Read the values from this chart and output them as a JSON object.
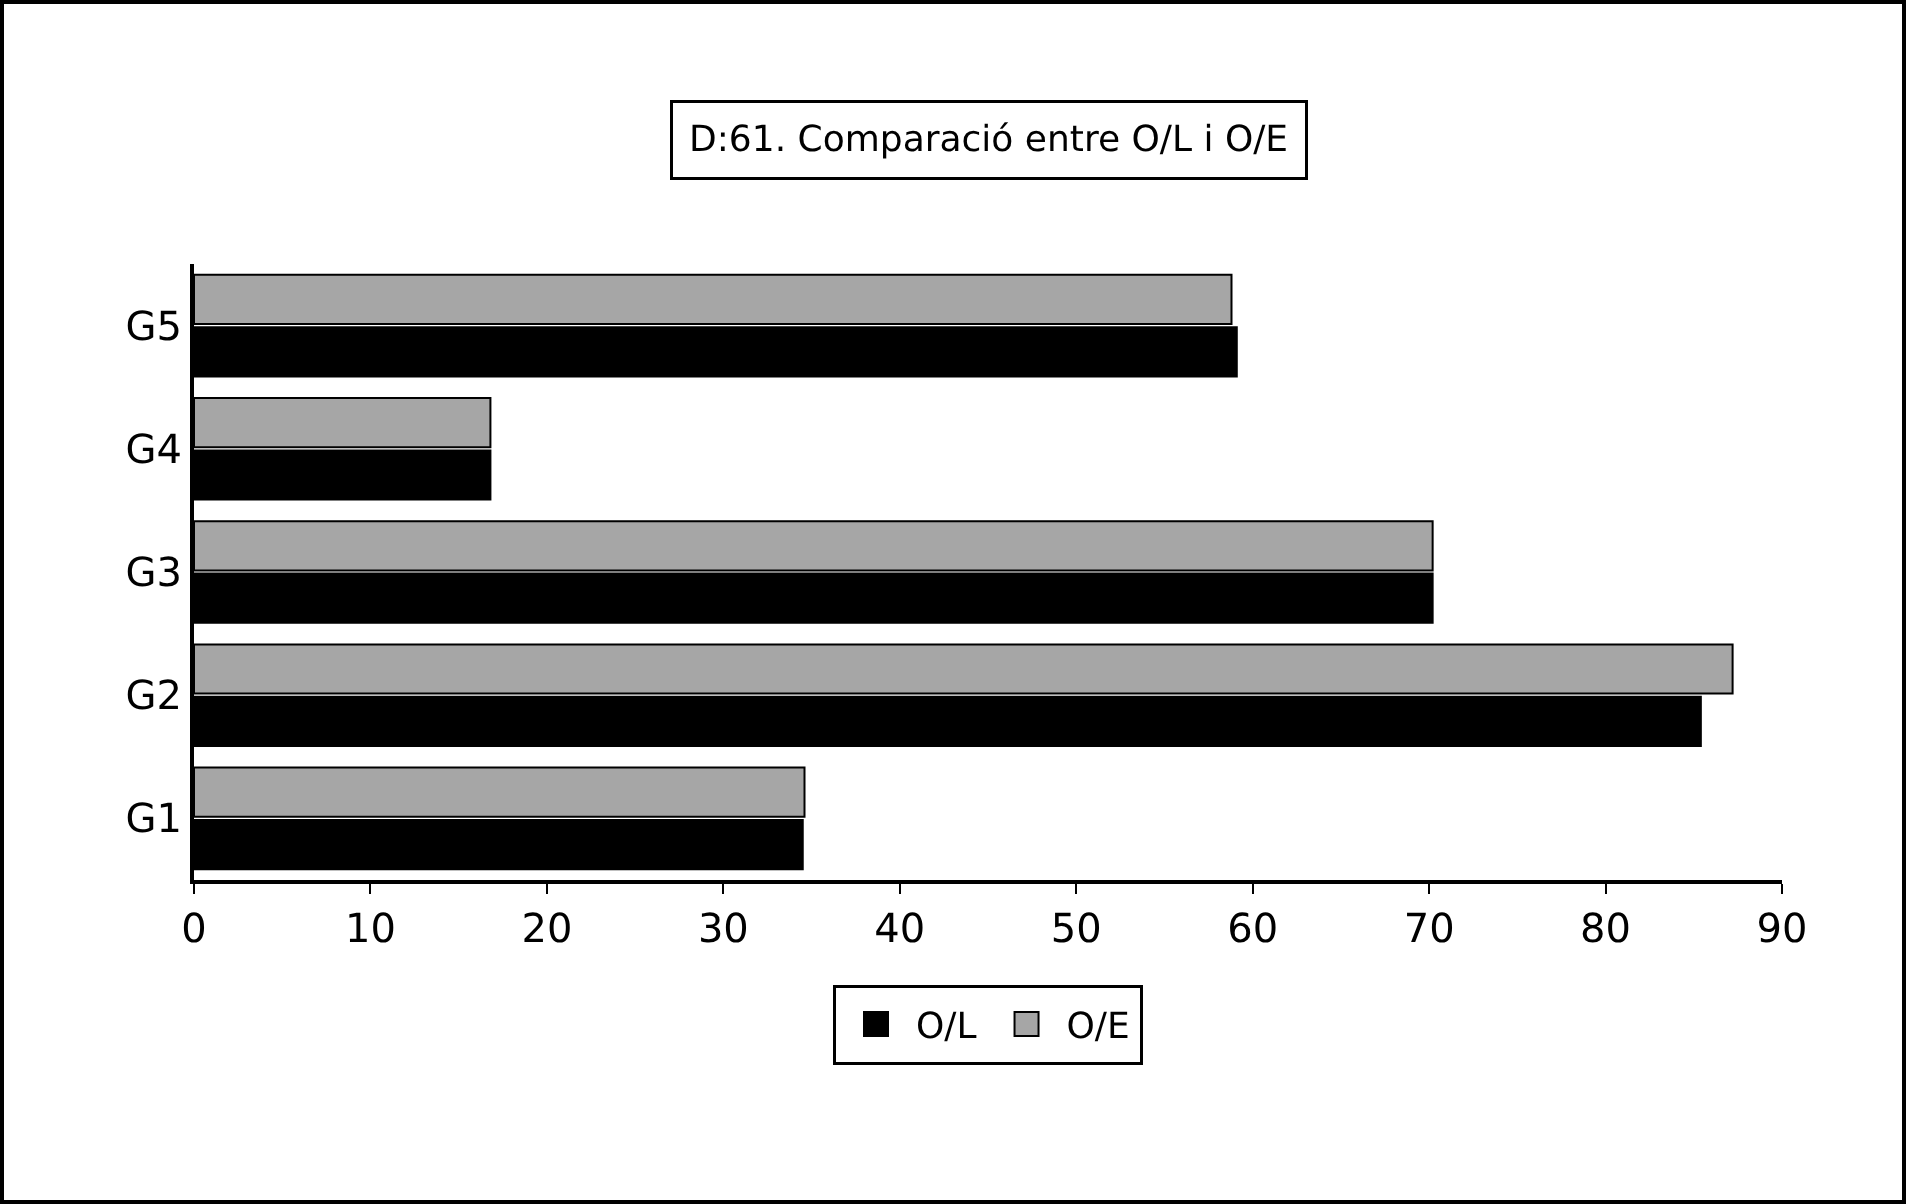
{
  "chart_data": {
    "type": "bar",
    "orientation": "horizontal",
    "title": "D:61. Comparació entre O/L i O/E",
    "categories": [
      "G5",
      "G4",
      "G3",
      "G2",
      "G1"
    ],
    "series": [
      {
        "name": "O/E",
        "color": "#a6a6a6",
        "values": [
          58.8,
          16.8,
          70.2,
          87.2,
          34.6
        ]
      },
      {
        "name": "O/L",
        "color": "#000000",
        "values": [
          59.1,
          16.8,
          70.2,
          85.4,
          34.5
        ]
      }
    ],
    "xlim": [
      0,
      90
    ],
    "xticks": [
      0,
      10,
      20,
      30,
      40,
      50,
      60,
      70,
      80,
      90
    ],
    "grid": false,
    "legend": "bottom"
  }
}
